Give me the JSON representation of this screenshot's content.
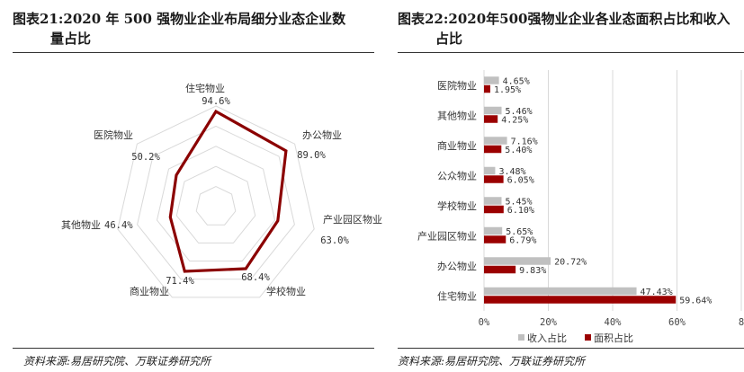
{
  "left": {
    "title_line1": "图表21:2020 年 500 强物业企业布局细分业态企业数",
    "title_line2": "量占比",
    "source": "资料来源:易居研究院、万联证券研究所"
  },
  "right": {
    "title_line1": "图表22:2020年500强物业企业各业态面积占比和收入",
    "title_line2": "占比",
    "source": "资料来源:易居研究院、万联证券研究所"
  },
  "chart_data": [
    {
      "type": "radar",
      "categories": [
        "住宅物业",
        "办公物业",
        "产业园区物业",
        "学校物业",
        "商业物业",
        "其他物业",
        "医院物业"
      ],
      "values": [
        94.6,
        89.0,
        63.0,
        68.4,
        71.4,
        46.4,
        50.2
      ],
      "value_labels": [
        "94.6%",
        "89.0%",
        "63.0%",
        "68.4%",
        "71.4%",
        "46.4%",
        "50.2%"
      ],
      "range": [
        0,
        100
      ],
      "colors": {
        "series": "#8b0000",
        "grid": "#d9d9d9"
      }
    },
    {
      "type": "bar",
      "orientation": "horizontal",
      "categories": [
        "医院物业",
        "其他物业",
        "商业物业",
        "公众物业",
        "学校物业",
        "产业园区物业",
        "办公物业",
        "住宅物业"
      ],
      "series": [
        {
          "name": "收入占比",
          "values": [
            4.65,
            5.46,
            7.16,
            3.48,
            5.45,
            5.65,
            20.72,
            47.43
          ],
          "labels": [
            "4.65%",
            "5.46%",
            "7.16%",
            "3.48%",
            "5.45%",
            "5.65%",
            "20.72%",
            "47.43%"
          ],
          "color": "#c0c0c0"
        },
        {
          "name": "面积占比",
          "values": [
            1.95,
            4.25,
            5.4,
            6.05,
            6.1,
            6.79,
            9.83,
            59.64
          ],
          "labels": [
            "1.95%",
            "4.25%",
            "5.40%",
            "6.05%",
            "6.10%",
            "6.79%",
            "9.83%",
            "59.64%"
          ],
          "color": "#9b0000"
        }
      ],
      "xlim": [
        0,
        80
      ],
      "x_ticks": [
        "0%",
        "20%",
        "40%",
        "60%",
        "8"
      ],
      "grid": true,
      "legend": "bottom"
    }
  ]
}
